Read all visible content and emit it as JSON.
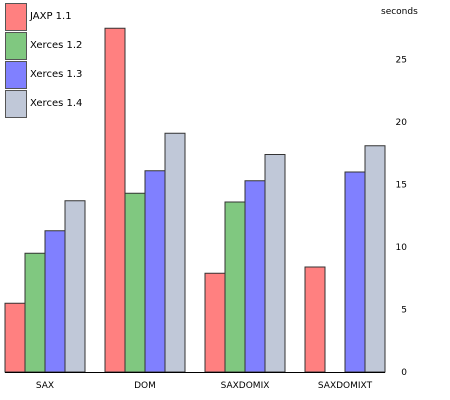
{
  "chart_data": {
    "type": "bar",
    "title": "",
    "xlabel": "",
    "ylabel": "seconds",
    "ylim": [
      0,
      30
    ],
    "yticks": [
      0,
      5,
      10,
      15,
      20,
      25
    ],
    "categories": [
      "SAX",
      "DOM",
      "SAXDOMIX",
      "SAXDOMIXT"
    ],
    "series": [
      {
        "name": "JAXP 1.1",
        "color": "#ff8080",
        "values": [
          5.5,
          27.5,
          7.9,
          8.4
        ]
      },
      {
        "name": "Xerces 1.2",
        "color": "#80c880",
        "values": [
          9.5,
          14.3,
          13.6,
          null
        ]
      },
      {
        "name": "Xerces 1.3",
        "color": "#8080ff",
        "values": [
          11.3,
          16.1,
          15.3,
          16.0
        ]
      },
      {
        "name": "Xerces 1.4",
        "color": "#c0c8d8",
        "values": [
          13.7,
          19.1,
          17.4,
          18.1
        ]
      }
    ],
    "legend_position": "top-left",
    "grid": false
  }
}
